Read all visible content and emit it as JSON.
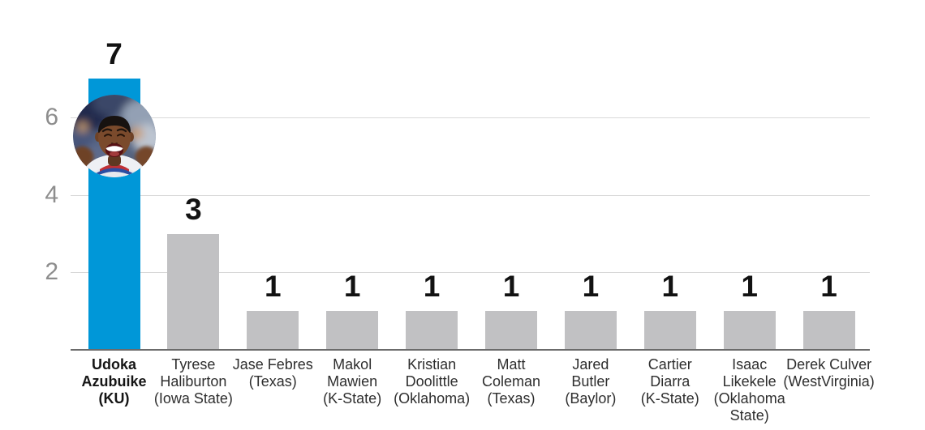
{
  "chart_data": {
    "type": "bar",
    "title": "",
    "xlabel": "",
    "ylabel": "",
    "ylim": [
      0,
      7.3
    ],
    "yticks": [
      2,
      4,
      6
    ],
    "grid": true,
    "legend": "none",
    "categories": [
      "Udoka Azubuike (KU)",
      "Tyrese Haliburton (Iowa State)",
      "Jase Febres (Texas)",
      "Makol Mawien (K-State)",
      "Kristian Doolittle (Oklahoma)",
      "Matt Coleman (Texas)",
      "Jared Butler (Baylor)",
      "Cartier Diarra (K-State)",
      "Isaac Likekele (Oklahoma State)",
      "Derek Culver (WestVirginia)"
    ],
    "values": [
      7,
      3,
      1,
      1,
      1,
      1,
      1,
      1,
      1,
      1
    ],
    "players": [
      {
        "name": "Udoka Azubuike",
        "school": "KU",
        "value": 7,
        "highlight": true,
        "label_lines": [
          "Udoka",
          "Azubuike",
          "(KU)"
        ],
        "photo": "udoka-azubuike-photo"
      },
      {
        "name": "Tyrese Haliburton",
        "school": "Iowa State",
        "value": 3,
        "highlight": false,
        "label_lines": [
          "Tyrese",
          "Haliburton",
          "(Iowa State)"
        ]
      },
      {
        "name": "Jase Febres",
        "school": "Texas",
        "value": 1,
        "highlight": false,
        "label_lines": [
          "Jase Febres",
          "(Texas)"
        ]
      },
      {
        "name": "Makol Mawien",
        "school": "K-State",
        "value": 1,
        "highlight": false,
        "label_lines": [
          "Makol",
          "Mawien",
          "(K-State)"
        ]
      },
      {
        "name": "Kristian Doolittle",
        "school": "Oklahoma",
        "value": 1,
        "highlight": false,
        "label_lines": [
          "Kristian",
          "Doolittle",
          "(Oklahoma)"
        ]
      },
      {
        "name": "Matt Coleman",
        "school": "Texas",
        "value": 1,
        "highlight": false,
        "label_lines": [
          "Matt",
          "Coleman",
          "(Texas)"
        ]
      },
      {
        "name": "Jared Butler",
        "school": "Baylor",
        "value": 1,
        "highlight": false,
        "label_lines": [
          "Jared",
          "Butler",
          "(Baylor)"
        ]
      },
      {
        "name": "Cartier Diarra",
        "school": "K-State",
        "value": 1,
        "highlight": false,
        "label_lines": [
          "Cartier",
          "Diarra",
          "(K-State)"
        ]
      },
      {
        "name": "Isaac Likekele",
        "school": "Oklahoma State",
        "value": 1,
        "highlight": false,
        "label_lines": [
          "Isaac",
          "Likekele",
          "(Oklahoma",
          "State)"
        ]
      },
      {
        "name": "Derek Culver",
        "school": "WestVirginia",
        "value": 1,
        "highlight": false,
        "label_lines": [
          "Derek Culver",
          "(WestVirginia)"
        ]
      }
    ]
  },
  "colors": {
    "highlight_bar": "#0097d8",
    "bar": "#c1c1c3",
    "gridline": "#d8d8d8",
    "axis_line": "#6b6b6b",
    "tick_label": "#8d8d8d",
    "value_label": "#121212",
    "category_label": "#2e2e2e"
  },
  "icons": {
    "avatar": "udoka-azubuike-photo"
  }
}
